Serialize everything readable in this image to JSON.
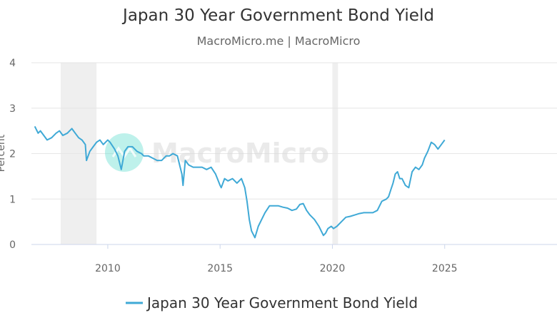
{
  "chart_data": {
    "type": "line",
    "title": "Japan 30 Year Government Bond Yield",
    "subtitle": "MacroMicro.me | MacroMicro",
    "ylabel": "Percent",
    "xlabel": "",
    "ylim": [
      0,
      4
    ],
    "yticks": [
      0,
      1,
      2,
      3,
      4
    ],
    "xlim": [
      2006.6,
      2030.0
    ],
    "xticks": [
      2010,
      2015,
      2020,
      2025
    ],
    "xtick_labels": [
      "2010",
      "2015",
      "2020",
      "2025"
    ],
    "grid": true,
    "legend": "bottom-center",
    "watermark": "MacroMicro",
    "shaded_periods": [
      [
        2007.9,
        2009.5
      ],
      [
        2020.0,
        2020.25
      ]
    ],
    "series": [
      {
        "name": "Japan 30 Year Government Bond Yield",
        "color": "#3fa9d6",
        "x": [
          2006.75,
          2006.9,
          2007.0,
          2007.15,
          2007.3,
          2007.5,
          2007.7,
          2007.85,
          2008.0,
          2008.2,
          2008.4,
          2008.55,
          2008.7,
          2008.85,
          2009.0,
          2009.05,
          2009.2,
          2009.35,
          2009.5,
          2009.65,
          2009.8,
          2010.0,
          2010.1,
          2010.3,
          2010.45,
          2010.6,
          2010.75,
          2010.9,
          2011.1,
          2011.3,
          2011.5,
          2011.6,
          2011.8,
          2012.0,
          2012.2,
          2012.4,
          2012.6,
          2012.75,
          2012.9,
          2013.1,
          2013.3,
          2013.35,
          2013.45,
          2013.6,
          2013.8,
          2014.0,
          2014.2,
          2014.4,
          2014.6,
          2014.8,
          2015.0,
          2015.05,
          2015.2,
          2015.35,
          2015.55,
          2015.75,
          2015.95,
          2016.1,
          2016.2,
          2016.3,
          2016.4,
          2016.55,
          2016.7,
          2016.85,
          2017.0,
          2017.2,
          2017.4,
          2017.6,
          2017.8,
          2018.0,
          2018.2,
          2018.4,
          2018.55,
          2018.7,
          2018.85,
          2019.0,
          2019.2,
          2019.4,
          2019.6,
          2019.7,
          2019.8,
          2019.95,
          2020.05,
          2020.2,
          2020.4,
          2020.6,
          2020.8,
          2021.0,
          2021.2,
          2021.4,
          2021.6,
          2021.8,
          2022.0,
          2022.2,
          2022.4,
          2022.5,
          2022.6,
          2022.7,
          2022.8,
          2022.9,
          2023.0,
          2023.1,
          2023.25,
          2023.4,
          2023.55,
          2023.7,
          2023.85,
          2024.0,
          2024.1,
          2024.25,
          2024.4,
          2024.55,
          2024.7,
          2024.85,
          2025.0
        ],
        "y": [
          2.6,
          2.45,
          2.5,
          2.4,
          2.3,
          2.35,
          2.45,
          2.5,
          2.4,
          2.45,
          2.55,
          2.45,
          2.35,
          2.3,
          2.2,
          1.85,
          2.05,
          2.15,
          2.25,
          2.3,
          2.2,
          2.3,
          2.25,
          2.1,
          1.95,
          1.65,
          2.05,
          2.15,
          2.15,
          2.05,
          2.0,
          1.95,
          1.95,
          1.9,
          1.85,
          1.85,
          1.95,
          1.95,
          2.0,
          1.95,
          1.55,
          1.3,
          1.85,
          1.75,
          1.7,
          1.7,
          1.7,
          1.65,
          1.7,
          1.55,
          1.3,
          1.25,
          1.45,
          1.4,
          1.45,
          1.35,
          1.45,
          1.25,
          0.95,
          0.55,
          0.3,
          0.15,
          0.4,
          0.55,
          0.7,
          0.85,
          0.85,
          0.85,
          0.82,
          0.8,
          0.75,
          0.78,
          0.88,
          0.9,
          0.75,
          0.65,
          0.55,
          0.4,
          0.2,
          0.25,
          0.35,
          0.4,
          0.35,
          0.4,
          0.5,
          0.6,
          0.62,
          0.65,
          0.68,
          0.7,
          0.7,
          0.7,
          0.75,
          0.95,
          1.0,
          1.05,
          1.2,
          1.35,
          1.55,
          1.6,
          1.45,
          1.45,
          1.3,
          1.25,
          1.6,
          1.7,
          1.65,
          1.75,
          1.9,
          2.05,
          2.25,
          2.2,
          2.1,
          2.2,
          2.3
        ]
      }
    ]
  }
}
